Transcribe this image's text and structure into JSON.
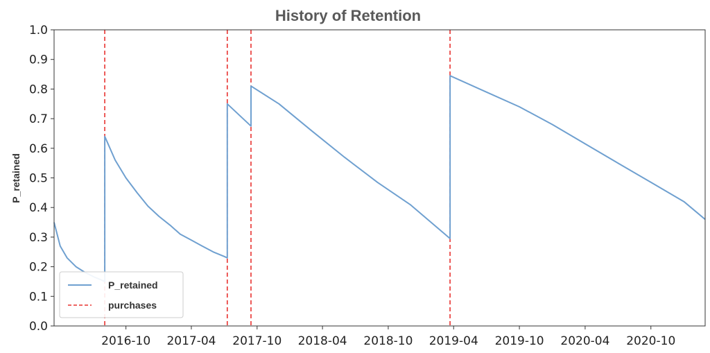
{
  "chart_data": {
    "type": "line",
    "title": "History of Retention",
    "xlabel": "",
    "ylabel": "P_retained",
    "xlim": [
      "2016-03-15",
      "2021-03-01"
    ],
    "ylim": [
      0,
      1.0
    ],
    "x_ticks": [
      "2016-10",
      "2017-04",
      "2017-10",
      "2018-04",
      "2018-10",
      "2019-04",
      "2019-10",
      "2020-04",
      "2020-10"
    ],
    "y_ticks": [
      "0.0",
      "0.1",
      "0.2",
      "0.3",
      "0.4",
      "0.5",
      "0.6",
      "0.7",
      "0.8",
      "0.9",
      "1.0"
    ],
    "grid": false,
    "legend_position": "bottom-left",
    "series": [
      {
        "name": "P_retained",
        "kind": "line",
        "color": "#6fa0d0",
        "points": [
          [
            "2016-03-15",
            0.35
          ],
          [
            "2016-04-01",
            0.27
          ],
          [
            "2016-04-20",
            0.23
          ],
          [
            "2016-05-15",
            0.2
          ],
          [
            "2016-06-10",
            0.18
          ],
          [
            "2016-07-05",
            0.165
          ],
          [
            "2016-07-25",
            0.155
          ],
          [
            "2016-08-03",
            0.15
          ],
          [
            "2016-08-03",
            0.64
          ],
          [
            "2016-09-01",
            0.56
          ],
          [
            "2016-10-01",
            0.5
          ],
          [
            "2016-11-01",
            0.45
          ],
          [
            "2016-12-01",
            0.405
          ],
          [
            "2017-01-01",
            0.37
          ],
          [
            "2017-02-01",
            0.34
          ],
          [
            "2017-03-01",
            0.31
          ],
          [
            "2017-04-01",
            0.29
          ],
          [
            "2017-05-01",
            0.27
          ],
          [
            "2017-06-01",
            0.25
          ],
          [
            "2017-07-01",
            0.235
          ],
          [
            "2017-07-10",
            0.23
          ],
          [
            "2017-07-10",
            0.75
          ],
          [
            "2017-09-14",
            0.675
          ],
          [
            "2017-09-14",
            0.81
          ],
          [
            "2017-12-01",
            0.75
          ],
          [
            "2018-03-01",
            0.66
          ],
          [
            "2018-06-01",
            0.57
          ],
          [
            "2018-09-01",
            0.485
          ],
          [
            "2018-12-01",
            0.41
          ],
          [
            "2019-03-22",
            0.295
          ],
          [
            "2019-03-22",
            0.845
          ],
          [
            "2019-07-01",
            0.79
          ],
          [
            "2019-10-01",
            0.74
          ],
          [
            "2020-01-01",
            0.68
          ],
          [
            "2020-04-01",
            0.615
          ],
          [
            "2020-07-01",
            0.55
          ],
          [
            "2020-10-01",
            0.485
          ],
          [
            "2021-01-01",
            0.42
          ],
          [
            "2021-03-01",
            0.36
          ]
        ]
      },
      {
        "name": "purchases",
        "kind": "vlines",
        "color": "#e8312f",
        "dash": "dashed",
        "x": [
          "2016-08-03",
          "2017-07-10",
          "2017-09-14",
          "2019-03-22"
        ]
      }
    ]
  }
}
